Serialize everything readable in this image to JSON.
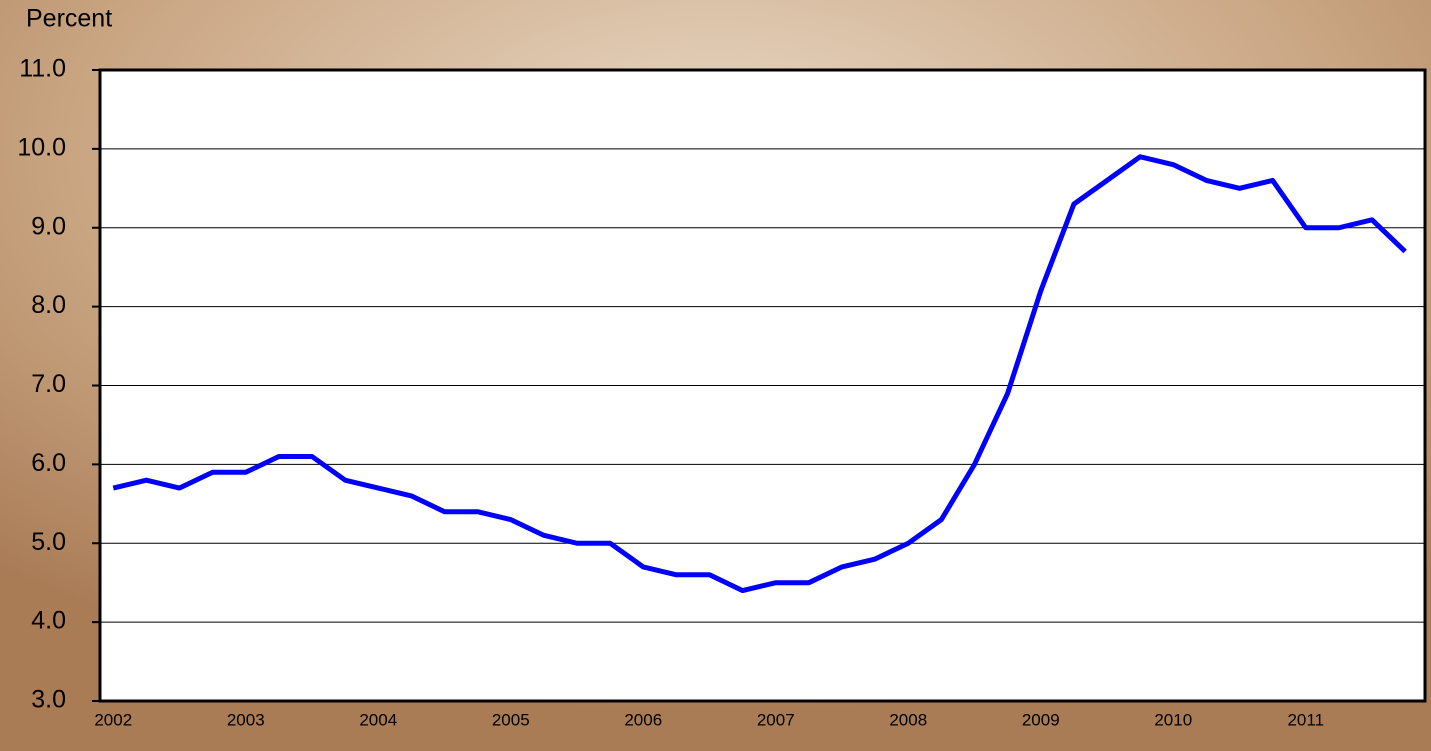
{
  "chart_data": {
    "type": "line",
    "ylabel": "Percent",
    "categories": [
      "2002",
      null,
      null,
      null,
      "2003",
      null,
      null,
      null,
      "2004",
      null,
      null,
      null,
      "2005",
      null,
      null,
      null,
      "2006",
      null,
      null,
      null,
      "2007",
      null,
      null,
      null,
      "2008",
      null,
      null,
      null,
      "2009",
      null,
      null,
      null,
      "2010",
      null,
      null,
      null,
      "2011",
      null,
      null,
      null
    ],
    "series": [
      {
        "color": "#0000ff",
        "values": [
          5.7,
          5.8,
          5.7,
          5.9,
          5.9,
          6.1,
          6.1,
          5.8,
          5.7,
          5.6,
          5.4,
          5.4,
          5.3,
          5.1,
          5.0,
          5.0,
          4.7,
          4.6,
          4.6,
          4.4,
          4.5,
          4.5,
          4.7,
          4.8,
          5.0,
          5.3,
          6.0,
          6.9,
          8.2,
          9.3,
          9.6,
          9.9,
          9.8,
          9.6,
          9.5,
          9.6,
          9.0,
          9.0,
          9.1,
          8.7
        ]
      }
    ],
    "ylim": [
      3,
      11
    ],
    "yticks": [
      {
        "value": 3,
        "label": "3.0"
      },
      {
        "value": 4,
        "label": "4.0"
      },
      {
        "value": 5,
        "label": "5.0"
      },
      {
        "value": 6,
        "label": "6.0"
      },
      {
        "value": 7,
        "label": "7.0"
      },
      {
        "value": 8,
        "label": "8.0"
      },
      {
        "value": 9,
        "label": "9.0"
      },
      {
        "value": 10,
        "label": "10.0"
      },
      {
        "value": 11,
        "label": "11.0"
      }
    ],
    "grid": true
  }
}
